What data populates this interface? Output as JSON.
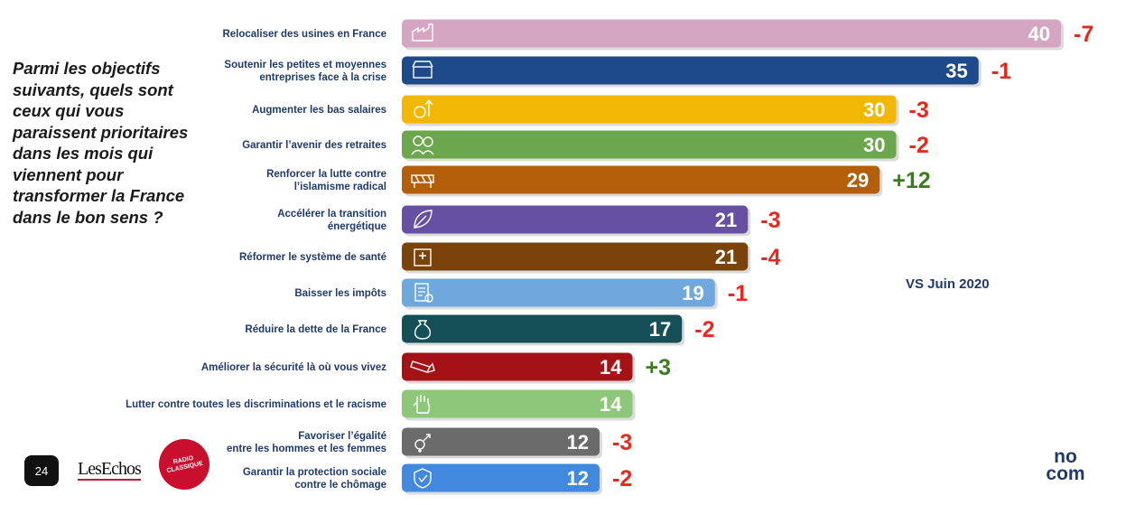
{
  "question": "Parmi les objectifs suivants, quels sont ceux qui vous paraissent prioritaires dans les mois qui viennent pour transformer la France dans le bon sens ?",
  "comparison_label": "VS Juin 2020",
  "page_number": "24",
  "logos": {
    "lesechos": "LesEchos",
    "radio": "RADIO\nCLASSIQUE",
    "nocom": "no\ncom"
  },
  "chart_data": {
    "type": "bar",
    "orientation": "horizontal",
    "xlim": [
      0,
      40
    ],
    "categories": [
      "Relocaliser des usines en France",
      "Soutenir les petites et moyennes\nentreprises face à la crise",
      "Augmenter les bas salaires",
      "Garantir l’avenir des retraites",
      "Renforcer la lutte contre\nl’islamisme radical",
      "Accélérer la transition\nénergétique",
      "Réformer le système de santé",
      "Baisser les impôts",
      "Réduire la dette de la France",
      "Améliorer la sécurité là où vous vivez",
      "Lutter contre toutes les discriminations et le racisme",
      "Favoriser l’égalité\nentre les hommes et les femmes",
      "Garantir la protection sociale\ncontre le chômage"
    ],
    "values": [
      40,
      35,
      30,
      30,
      29,
      21,
      21,
      19,
      17,
      14,
      14,
      12,
      12
    ],
    "changes": [
      "-7",
      "-1",
      "-3",
      "-2",
      "+12",
      "-3",
      "-4",
      "-1",
      "-2",
      "+3",
      "",
      "-3",
      "-2"
    ],
    "bar_colors": [
      "#d4a6c1",
      "#1d4a8b",
      "#f2b705",
      "#6da74d",
      "#b55e0a",
      "#6650a2",
      "#7a4309",
      "#6fa8dc",
      "#155059",
      "#a51216",
      "#8fc77a",
      "#6b6b6b",
      "#4189df"
    ],
    "icons": [
      "factory-icon",
      "shop-icon",
      "salary-icon",
      "retirees-icon",
      "barrier-icon",
      "leaf-icon",
      "hospital-icon",
      "tax-icon",
      "debt-icon",
      "camera-icon",
      "hand-icon",
      "equality-icon",
      "shield-icon"
    ],
    "change_colors": {
      "negative": "#e8281d",
      "positive": "#3a7d1f"
    }
  }
}
